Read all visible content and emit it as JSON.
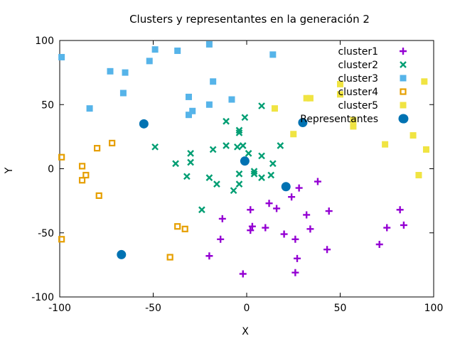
{
  "chart_data": {
    "type": "scatter",
    "title": "Clusters y representantes en la generación 2",
    "xlabel": "X",
    "ylabel": "Y",
    "xlim": [
      -100,
      100
    ],
    "ylim": [
      -100,
      100
    ],
    "xticks": [
      -100,
      -50,
      0,
      50,
      100
    ],
    "yticks": [
      -100,
      -50,
      0,
      50,
      100
    ],
    "xtick_labels": [
      "-100",
      "-50",
      "0",
      "50",
      "100"
    ],
    "ytick_labels": [
      "-100",
      "-50",
      "0",
      "50",
      "100"
    ],
    "grid": false,
    "legend_position": "top-right",
    "series": [
      {
        "name": "cluster1",
        "marker": "plus",
        "color": "#9400d3",
        "points": [
          [
            28,
            -15
          ],
          [
            38,
            -10
          ],
          [
            24,
            -22
          ],
          [
            12,
            -27
          ],
          [
            16,
            -31
          ],
          [
            32,
            -36
          ],
          [
            44,
            -33
          ],
          [
            2,
            -32
          ],
          [
            3,
            -45
          ],
          [
            2,
            -48
          ],
          [
            10,
            -46
          ],
          [
            20,
            -51
          ],
          [
            26,
            -55
          ],
          [
            34,
            -47
          ],
          [
            -13,
            -39
          ],
          [
            -14,
            -55
          ],
          [
            -20,
            -68
          ],
          [
            43,
            -63
          ],
          [
            27,
            -70
          ],
          [
            26,
            -81
          ],
          [
            -2,
            -82
          ],
          [
            82,
            -32
          ],
          [
            84,
            -44
          ],
          [
            75,
            -46
          ],
          [
            71,
            -59
          ]
        ]
      },
      {
        "name": "cluster2",
        "marker": "x",
        "color": "#009e73",
        "points": [
          [
            -49,
            17
          ],
          [
            -38,
            4
          ],
          [
            -30,
            12
          ],
          [
            -30,
            5
          ],
          [
            -32,
            -6
          ],
          [
            -18,
            15
          ],
          [
            -11,
            37
          ],
          [
            -11,
            18
          ],
          [
            -4,
            30
          ],
          [
            -4,
            28
          ],
          [
            -1,
            40
          ],
          [
            -2,
            18
          ],
          [
            -5,
            17
          ],
          [
            1,
            12
          ],
          [
            8,
            49
          ],
          [
            8,
            10
          ],
          [
            18,
            18
          ],
          [
            14,
            4
          ],
          [
            13,
            -5
          ],
          [
            8,
            -7
          ],
          [
            4,
            -4
          ],
          [
            4,
            -2
          ],
          [
            -4,
            -4
          ],
          [
            -4,
            -12
          ],
          [
            -7,
            -17
          ],
          [
            -16,
            -12
          ],
          [
            -20,
            -7
          ],
          [
            -24,
            -32
          ]
        ]
      },
      {
        "name": "cluster3",
        "marker": "square",
        "color": "#56b4e9",
        "points": [
          [
            -99,
            87
          ],
          [
            -49,
            93
          ],
          [
            -37,
            92
          ],
          [
            -20,
            97
          ],
          [
            -52,
            84
          ],
          [
            -73,
            76
          ],
          [
            -65,
            75
          ],
          [
            -66,
            59
          ],
          [
            -84,
            47
          ],
          [
            -31,
            56
          ],
          [
            -31,
            42
          ],
          [
            -29,
            45
          ],
          [
            -18,
            68
          ],
          [
            -20,
            50
          ],
          [
            -8,
            54
          ],
          [
            14,
            89
          ]
        ]
      },
      {
        "name": "cluster4",
        "marker": "open-square",
        "color": "#e69f00",
        "points": [
          [
            -99,
            9
          ],
          [
            -72,
            20
          ],
          [
            -80,
            16
          ],
          [
            -88,
            2
          ],
          [
            -86,
            -5
          ],
          [
            -88,
            -9
          ],
          [
            -79,
            -21
          ],
          [
            -99,
            -55
          ],
          [
            -37,
            -45
          ],
          [
            -33,
            -47
          ],
          [
            -41,
            -69
          ]
        ]
      },
      {
        "name": "cluster5",
        "marker": "square",
        "color": "#f0e442",
        "points": [
          [
            32,
            55
          ],
          [
            34,
            55
          ],
          [
            15,
            47
          ],
          [
            25,
            27
          ],
          [
            50,
            66
          ],
          [
            50,
            58
          ],
          [
            57,
            38
          ],
          [
            57,
            33
          ],
          [
            74,
            19
          ],
          [
            89,
            26
          ],
          [
            95,
            68
          ],
          [
            96,
            15
          ],
          [
            92,
            -5
          ]
        ]
      },
      {
        "name": "Representantes",
        "marker": "circle",
        "color": "#0072b2",
        "points": [
          [
            -55,
            35
          ],
          [
            -67,
            -67
          ],
          [
            -1,
            6
          ],
          [
            21,
            -14
          ],
          [
            30,
            36
          ],
          [
            84,
            39
          ]
        ]
      }
    ]
  }
}
